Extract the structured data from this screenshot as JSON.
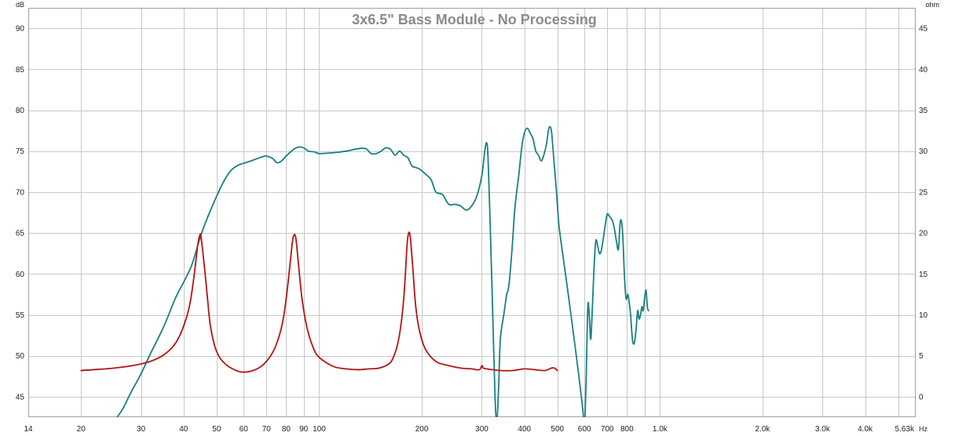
{
  "chart_data": {
    "type": "line",
    "title": "3x6.5\" Bass Module - No Processing",
    "y_unit_left": "dB",
    "y_unit_right": "ohm",
    "x_unit": "Hz",
    "x_scale": "log",
    "xlim": [
      14,
      5630
    ],
    "ylim_left": [
      42.5,
      92.5
    ],
    "ylim_right": [
      -2.5,
      47.5
    ],
    "grid": true,
    "colors": {
      "spl": "#1a8080",
      "impedance": "#b41414",
      "title": "#8a8a8a",
      "grid": "#c8c8c8"
    },
    "x_ticks": [
      {
        "value": 14,
        "label": "14"
      },
      {
        "value": 20,
        "label": "20"
      },
      {
        "value": 30,
        "label": "30"
      },
      {
        "value": 40,
        "label": "40"
      },
      {
        "value": 50,
        "label": "50"
      },
      {
        "value": 60,
        "label": "60"
      },
      {
        "value": 70,
        "label": "70"
      },
      {
        "value": 80,
        "label": "80"
      },
      {
        "value": 90,
        "label": "90"
      },
      {
        "value": 100,
        "label": "100"
      },
      {
        "value": 200,
        "label": "200"
      },
      {
        "value": 300,
        "label": "300"
      },
      {
        "value": 400,
        "label": "400"
      },
      {
        "value": 500,
        "label": "500"
      },
      {
        "value": 600,
        "label": "600"
      },
      {
        "value": 700,
        "label": "700"
      },
      {
        "value": 800,
        "label": "800"
      },
      {
        "value": 1000,
        "label": "1.0k"
      },
      {
        "value": 2000,
        "label": "2.0k"
      },
      {
        "value": 3000,
        "label": "3.0k"
      },
      {
        "value": 4000,
        "label": "4.0k"
      },
      {
        "value": 5630,
        "label": "5.63k"
      }
    ],
    "x_minor_grid": [
      900,
      5000
    ],
    "y_ticks_left": [
      45,
      50,
      55,
      60,
      65,
      70,
      75,
      80,
      85,
      90
    ],
    "y_ticks_right": [
      0,
      5,
      10,
      15,
      20,
      25,
      30,
      35,
      40,
      45
    ],
    "series": [
      {
        "key": "spl",
        "axis": "left",
        "color": "#1a8080",
        "points": [
          [
            25,
            42
          ],
          [
            26.5,
            43.5
          ],
          [
            28,
            45.5
          ],
          [
            30,
            47.8
          ],
          [
            32,
            50.3
          ],
          [
            35,
            53.6
          ],
          [
            38,
            57.2
          ],
          [
            42,
            60.8
          ],
          [
            45,
            64.8
          ],
          [
            48,
            67.8
          ],
          [
            52,
            71
          ],
          [
            55,
            72.6
          ],
          [
            58,
            73.3
          ],
          [
            62,
            73.7
          ],
          [
            65,
            74
          ],
          [
            68,
            74.3
          ],
          [
            70,
            74.4
          ],
          [
            73,
            74.1
          ],
          [
            75,
            73.6
          ],
          [
            77,
            73.7
          ],
          [
            80,
            74.4
          ],
          [
            84,
            75.2
          ],
          [
            87,
            75.5
          ],
          [
            90,
            75.4
          ],
          [
            93,
            75
          ],
          [
            97,
            74.9
          ],
          [
            100,
            74.7
          ],
          [
            110,
            74.8
          ],
          [
            120,
            75
          ],
          [
            130,
            75.3
          ],
          [
            137,
            75.3
          ],
          [
            142,
            74.7
          ],
          [
            147,
            74.7
          ],
          [
            152,
            75
          ],
          [
            157,
            75.4
          ],
          [
            162,
            75.2
          ],
          [
            167,
            74.5
          ],
          [
            172,
            75
          ],
          [
            177,
            74.5
          ],
          [
            182,
            74.2
          ],
          [
            187,
            73.2
          ],
          [
            192,
            73
          ],
          [
            197,
            72.8
          ],
          [
            205,
            72.2
          ],
          [
            213,
            71.5
          ],
          [
            220,
            70
          ],
          [
            230,
            69.7
          ],
          [
            240,
            68.5
          ],
          [
            250,
            68.5
          ],
          [
            260,
            68.3
          ],
          [
            270,
            67.8
          ],
          [
            280,
            68.3
          ],
          [
            290,
            69.5
          ],
          [
            300,
            72
          ],
          [
            306,
            75
          ],
          [
            310,
            76
          ],
          [
            313,
            74
          ],
          [
            318,
            65
          ],
          [
            323,
            55
          ],
          [
            328,
            45
          ],
          [
            332,
            42
          ],
          [
            336,
            46
          ],
          [
            340,
            52
          ],
          [
            348,
            55
          ],
          [
            355,
            57.5
          ],
          [
            360,
            58.5
          ],
          [
            368,
            63
          ],
          [
            375,
            68
          ],
          [
            385,
            72
          ],
          [
            393,
            75.5
          ],
          [
            400,
            77.2
          ],
          [
            408,
            77.8
          ],
          [
            416,
            77.2
          ],
          [
            424,
            76.5
          ],
          [
            432,
            75
          ],
          [
            440,
            74.5
          ],
          [
            448,
            73.8
          ],
          [
            456,
            74.5
          ],
          [
            465,
            76
          ],
          [
            472,
            77.8
          ],
          [
            480,
            77.5
          ],
          [
            488,
            74
          ],
          [
            497,
            70
          ],
          [
            505,
            66
          ],
          [
            520,
            62
          ],
          [
            540,
            57
          ],
          [
            560,
            52
          ],
          [
            580,
            47
          ],
          [
            595,
            43
          ],
          [
            600,
            41
          ],
          [
            607,
            47
          ],
          [
            614,
            56
          ],
          [
            620,
            55
          ],
          [
            626,
            52
          ],
          [
            632,
            55
          ],
          [
            640,
            60.5
          ],
          [
            648,
            64
          ],
          [
            656,
            63.5
          ],
          [
            664,
            62.5
          ],
          [
            672,
            62.8
          ],
          [
            680,
            64
          ],
          [
            690,
            65.8
          ],
          [
            700,
            67.3
          ],
          [
            712,
            67
          ],
          [
            725,
            66.5
          ],
          [
            735,
            65.5
          ],
          [
            745,
            64
          ],
          [
            755,
            63
          ],
          [
            763,
            66
          ],
          [
            770,
            66.5
          ],
          [
            778,
            64.5
          ],
          [
            786,
            60
          ],
          [
            795,
            57
          ],
          [
            805,
            57.5
          ],
          [
            812,
            56.5
          ],
          [
            820,
            55
          ],
          [
            830,
            52
          ],
          [
            840,
            51.5
          ],
          [
            850,
            53
          ],
          [
            860,
            55.5
          ],
          [
            868,
            54.5
          ],
          [
            877,
            55
          ],
          [
            885,
            56
          ],
          [
            893,
            55.5
          ],
          [
            901,
            57
          ],
          [
            910,
            58
          ],
          [
            918,
            56
          ],
          [
            925,
            55.5
          ]
        ]
      },
      {
        "key": "impedance",
        "axis": "right",
        "color": "#b41414",
        "points": [
          [
            20,
            3.2
          ],
          [
            25,
            3.5
          ],
          [
            30,
            4
          ],
          [
            34,
            4.8
          ],
          [
            37,
            6
          ],
          [
            39,
            7.5
          ],
          [
            41,
            10
          ],
          [
            42,
            12
          ],
          [
            43,
            15
          ],
          [
            44,
            18.5
          ],
          [
            44.6,
            19.7
          ],
          [
            45,
            19.5
          ],
          [
            46,
            16
          ],
          [
            47,
            12
          ],
          [
            48,
            8.5
          ],
          [
            50,
            5.5
          ],
          [
            53,
            4
          ],
          [
            57,
            3.2
          ],
          [
            60,
            3
          ],
          [
            64,
            3.2
          ],
          [
            68,
            3.8
          ],
          [
            72,
            5
          ],
          [
            75,
            6.5
          ],
          [
            78,
            9
          ],
          [
            80,
            12
          ],
          [
            82,
            16
          ],
          [
            83.5,
            19
          ],
          [
            84.5,
            19.8
          ],
          [
            85.5,
            19.2
          ],
          [
            87,
            16
          ],
          [
            89,
            12
          ],
          [
            92,
            8.5
          ],
          [
            96,
            6
          ],
          [
            100,
            4.8
          ],
          [
            110,
            3.7
          ],
          [
            120,
            3.4
          ],
          [
            130,
            3.3
          ],
          [
            140,
            3.4
          ],
          [
            150,
            3.5
          ],
          [
            160,
            4
          ],
          [
            165,
            4.8
          ],
          [
            170,
            6.5
          ],
          [
            174,
            9
          ],
          [
            177,
            12
          ],
          [
            179,
            15
          ],
          [
            181,
            18.5
          ],
          [
            183,
            20
          ],
          [
            185,
            19.5
          ],
          [
            188,
            16
          ],
          [
            192,
            11
          ],
          [
            197,
            8
          ],
          [
            205,
            5.8
          ],
          [
            220,
            4.3
          ],
          [
            240,
            3.8
          ],
          [
            260,
            3.5
          ],
          [
            280,
            3.4
          ],
          [
            295,
            3.3
          ],
          [
            300,
            3.8
          ],
          [
            303,
            3.5
          ],
          [
            310,
            3.4
          ],
          [
            340,
            3.2
          ],
          [
            370,
            3.2
          ],
          [
            400,
            3.4
          ],
          [
            430,
            3.3
          ],
          [
            460,
            3.2
          ],
          [
            480,
            3.5
          ],
          [
            490,
            3.5
          ],
          [
            500,
            3.2
          ]
        ]
      }
    ]
  }
}
